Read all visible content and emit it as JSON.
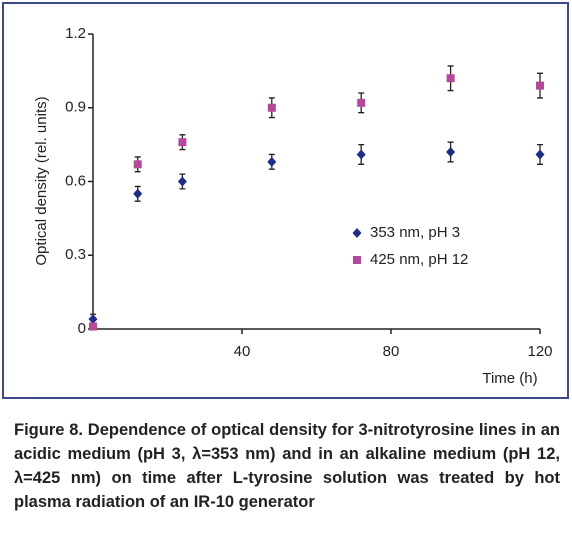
{
  "chart_data": {
    "type": "scatter",
    "x_label": "Time (h)",
    "y_label": "Optical density (rel. units)",
    "x": [
      0,
      12,
      24,
      48,
      72,
      96,
      120
    ],
    "series": [
      {
        "name": "353 nm, pH 3",
        "color": "#1f2d8a",
        "marker": "diamond",
        "values": [
          0.04,
          0.55,
          0.6,
          0.68,
          0.71,
          0.72,
          0.71
        ],
        "errors": [
          0.02,
          0.03,
          0.03,
          0.03,
          0.04,
          0.04,
          0.04
        ]
      },
      {
        "name": "425 nm, pH 12",
        "color": "#b8479c",
        "marker": "square",
        "values": [
          0.01,
          0.67,
          0.76,
          0.9,
          0.92,
          1.02,
          0.99
        ],
        "errors": [
          0.01,
          0.03,
          0.03,
          0.04,
          0.04,
          0.05,
          0.05
        ]
      }
    ],
    "xlim": [
      0,
      120
    ],
    "xticks": [
      40,
      80,
      120
    ],
    "ylim": [
      0,
      1.2
    ],
    "yticks": [
      0,
      0.3,
      0.6,
      0.9,
      1.2
    ],
    "legend": "center right",
    "caption": "Figure 8. Dependence of optical density for 3-nitrotyrosine lines in an acidic medium (pH 3, λ=353 nm) and in an alkaline medium (pH 12, λ=425 nm) on time after L-tyrosine solution was treated by hot plasma radiation of an IR-10 generator"
  }
}
